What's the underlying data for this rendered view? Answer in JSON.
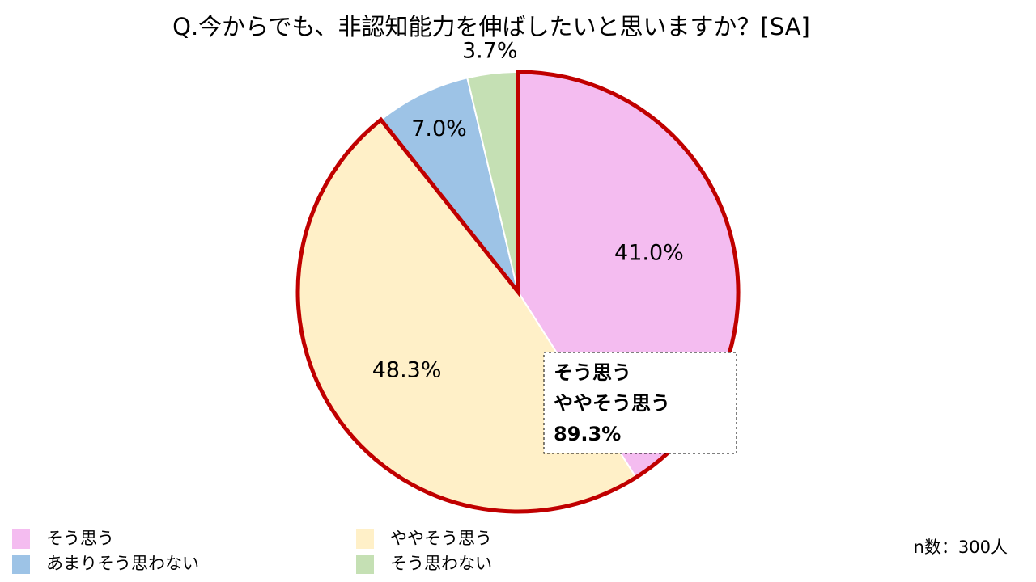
{
  "chart_data": {
    "type": "pie",
    "title": "Q.今からでも、非認知能力を伸ばしたいと思いますか？[SA]",
    "categories": [
      "そう思う",
      "ややそう思う",
      "あまりそう思わない",
      "そう思わない"
    ],
    "values": [
      41.0,
      48.3,
      7.0,
      3.7
    ],
    "value_labels": [
      "41.0%",
      "48.3%",
      "7.0%",
      "3.7%"
    ],
    "colors": [
      "#f4bcf0",
      "#fff0c8",
      "#9dc3e6",
      "#c5e0b4"
    ],
    "highlight_color": "#c00000",
    "annotation": [
      "そう思う",
      "ややそう思う",
      "89.3%"
    ],
    "note": "n数：300人"
  }
}
